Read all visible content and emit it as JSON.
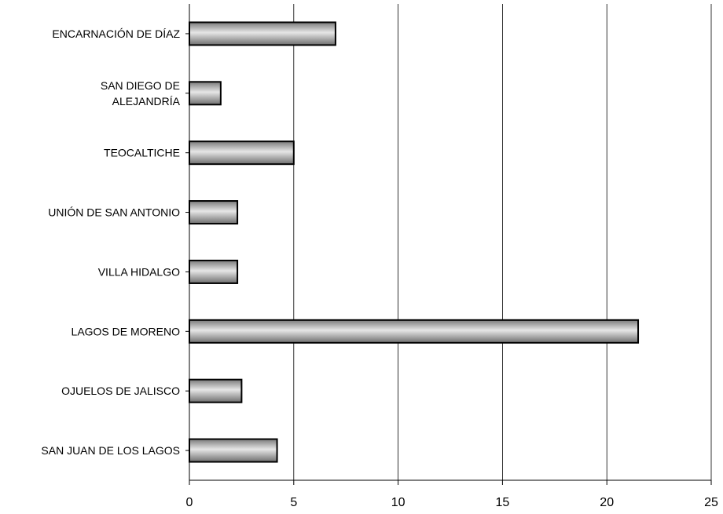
{
  "chart_data": {
    "type": "bar",
    "orientation": "horizontal",
    "categories": [
      [
        "ENCARNACIÓN DE DÍAZ"
      ],
      [
        "SAN DIEGO DE",
        "ALEJANDRÍA"
      ],
      [
        "TEOCALTICHE"
      ],
      [
        "UNIÓN DE SAN ANTONIO"
      ],
      [
        "VILLA HIDALGO"
      ],
      [
        "LAGOS DE MORENO"
      ],
      [
        "OJUELOS DE JALISCO"
      ],
      [
        "SAN JUAN DE LOS LAGOS"
      ]
    ],
    "values": [
      7,
      1.5,
      5,
      2.3,
      2.3,
      21.5,
      2.5,
      4.2
    ],
    "title": "",
    "xlabel": "",
    "ylabel": "",
    "xlim": [
      0,
      25
    ],
    "ticks": [
      "0",
      "5",
      "10",
      "15",
      "20",
      "25"
    ],
    "grid": true,
    "legend": "none",
    "bar_color": "#a0a0a0"
  }
}
